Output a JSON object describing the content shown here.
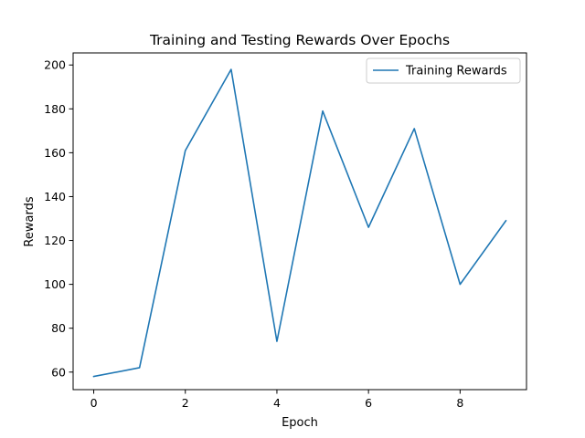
{
  "chart_data": {
    "type": "line",
    "title": "Training and Testing Rewards Over Epochs",
    "xlabel": "Epoch",
    "ylabel": "Rewards",
    "xlim": [
      -0.45,
      9.45
    ],
    "ylim": [
      52.0,
      205.5
    ],
    "xticks": [
      0,
      2,
      4,
      6,
      8
    ],
    "yticks": [
      60,
      80,
      100,
      120,
      140,
      160,
      180,
      200
    ],
    "grid": false,
    "legend_position": "top-right",
    "series": [
      {
        "name": "Training Rewards",
        "color": "#1f77b4",
        "x": [
          0,
          1,
          2,
          3,
          4,
          5,
          6,
          7,
          8,
          9
        ],
        "y": [
          58,
          62,
          161,
          198,
          74,
          179,
          126,
          171,
          100,
          129
        ]
      }
    ]
  }
}
